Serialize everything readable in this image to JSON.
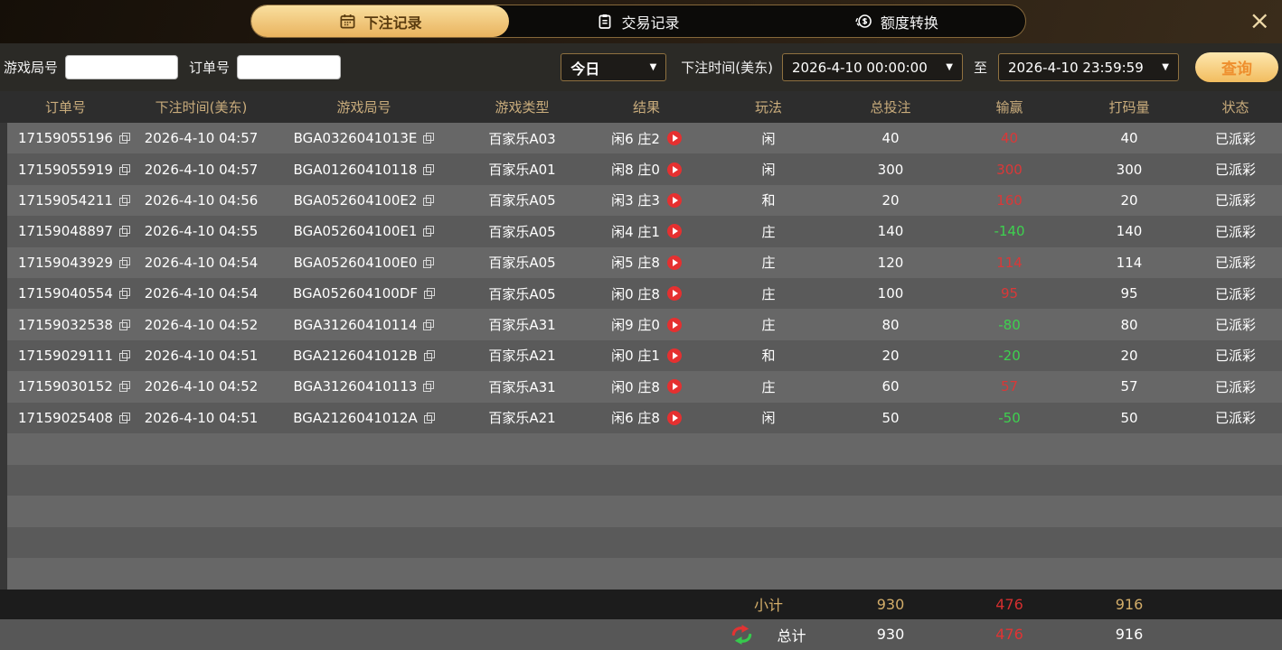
{
  "header": {
    "tabs": [
      {
        "label": "下注记录",
        "icon": "calendar-icon",
        "active": true
      },
      {
        "label": "交易记录",
        "icon": "clipboard-icon",
        "active": false
      },
      {
        "label": "额度转换",
        "icon": "coins-icon",
        "active": false
      }
    ],
    "close_label": "×"
  },
  "filters": {
    "game_round_label": "游戏局号",
    "game_round_value": "",
    "order_no_label": "订单号",
    "order_no_value": "",
    "range_select": "今日",
    "bet_time_label": "下注时间(美东)",
    "start_time": "2026-4-10 00:00:00",
    "to_label": "至",
    "end_time": "2026-4-10 23:59:59",
    "search_button": "查询"
  },
  "icons": {
    "dropdown_arrow": "▼"
  },
  "table": {
    "columns": [
      "订单号",
      "下注时间(美东)",
      "游戏局号",
      "游戏类型",
      "结果",
      "玩法",
      "总投注",
      "输赢",
      "打码量",
      "状态"
    ],
    "rows": [
      {
        "order_id": "17159055196",
        "bet_time": "2026-4-10 04:57",
        "round_id": "BGA0326041013E",
        "game_type": "百家乐A03",
        "result": "闲6 庄2",
        "play": "闲",
        "total_bet": "40",
        "win_loss": "40",
        "rolling": "40",
        "status": "已派彩"
      },
      {
        "order_id": "17159055919",
        "bet_time": "2026-4-10 04:57",
        "round_id": "BGA01260410118",
        "game_type": "百家乐A01",
        "result": "闲8 庄0",
        "play": "闲",
        "total_bet": "300",
        "win_loss": "300",
        "rolling": "300",
        "status": "已派彩"
      },
      {
        "order_id": "17159054211",
        "bet_time": "2026-4-10 04:56",
        "round_id": "BGA052604100E2",
        "game_type": "百家乐A05",
        "result": "闲3 庄3",
        "play": "和",
        "total_bet": "20",
        "win_loss": "160",
        "rolling": "20",
        "status": "已派彩"
      },
      {
        "order_id": "17159048897",
        "bet_time": "2026-4-10 04:55",
        "round_id": "BGA052604100E1",
        "game_type": "百家乐A05",
        "result": "闲4 庄1",
        "play": "庄",
        "total_bet": "140",
        "win_loss": "-140",
        "rolling": "140",
        "status": "已派彩"
      },
      {
        "order_id": "17159043929",
        "bet_time": "2026-4-10 04:54",
        "round_id": "BGA052604100E0",
        "game_type": "百家乐A05",
        "result": "闲5 庄8",
        "play": "庄",
        "total_bet": "120",
        "win_loss": "114",
        "rolling": "114",
        "status": "已派彩"
      },
      {
        "order_id": "17159040554",
        "bet_time": "2026-4-10 04:54",
        "round_id": "BGA052604100DF",
        "game_type": "百家乐A05",
        "result": "闲0 庄8",
        "play": "庄",
        "total_bet": "100",
        "win_loss": "95",
        "rolling": "95",
        "status": "已派彩"
      },
      {
        "order_id": "17159032538",
        "bet_time": "2026-4-10 04:52",
        "round_id": "BGA31260410114",
        "game_type": "百家乐A31",
        "result": "闲9 庄0",
        "play": "庄",
        "total_bet": "80",
        "win_loss": "-80",
        "rolling": "80",
        "status": "已派彩"
      },
      {
        "order_id": "17159029111",
        "bet_time": "2026-4-10 04:51",
        "round_id": "BGA2126041012B",
        "game_type": "百家乐A21",
        "result": "闲0 庄1",
        "play": "和",
        "total_bet": "20",
        "win_loss": "-20",
        "rolling": "20",
        "status": "已派彩"
      },
      {
        "order_id": "17159030152",
        "bet_time": "2026-4-10 04:52",
        "round_id": "BGA31260410113",
        "game_type": "百家乐A31",
        "result": "闲0 庄8",
        "play": "庄",
        "total_bet": "60",
        "win_loss": "57",
        "rolling": "57",
        "status": "已派彩"
      },
      {
        "order_id": "17159025408",
        "bet_time": "2026-4-10 04:51",
        "round_id": "BGA2126041012A",
        "game_type": "百家乐A21",
        "result": "闲6 庄8",
        "play": "闲",
        "total_bet": "50",
        "win_loss": "-50",
        "rolling": "50",
        "status": "已派彩"
      }
    ]
  },
  "footer": {
    "subtotal": {
      "label": "小计",
      "total_bet": "930",
      "win_loss": "476",
      "rolling": "916"
    },
    "total": {
      "label": "总计",
      "total_bet": "930",
      "win_loss": "476",
      "rolling": "916"
    }
  },
  "colors": {
    "accent_gold": "#e9b35e",
    "tab_text_active": "#5a3c10",
    "header_text": "#c9ac7c",
    "win_red": "#da3838",
    "loss_green": "#3ed14f",
    "row_light": "#676767",
    "row_dark": "#5a5a5a",
    "subtotal_bg": "#1c1c1c",
    "search_button_text": "#ee8f2e"
  }
}
